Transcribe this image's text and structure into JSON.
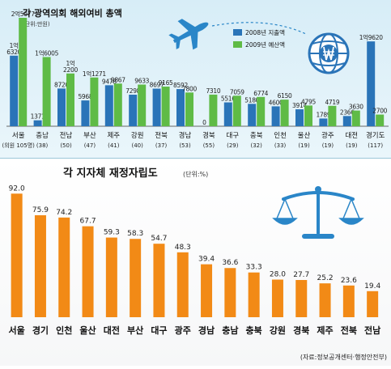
{
  "colors": {
    "series_2008": "#2a74b8",
    "series_2009": "#5fbb46",
    "independence_bar": "#f28a16",
    "top_background": "#dff1f8"
  },
  "chart_data": [
    {
      "type": "bar",
      "title": "각 광역의회 해외여비 총액",
      "unit": "(단위:만원)",
      "legend_position": "top-right",
      "categories": [
        "서울",
        "충남",
        "전남",
        "부산",
        "제주",
        "강원",
        "전북",
        "경남",
        "경북",
        "대구",
        "충북",
        "인천",
        "울산",
        "광주",
        "대전",
        "경기도"
      ],
      "category_sublabels": [
        "(의원 105명)",
        "(38)",
        "(50)",
        "(47)",
        "(41)",
        "(40)",
        "(37)",
        "(53)",
        "(55)",
        "(29)",
        "(32)",
        "(33)",
        "(19)",
        "(19)",
        "(19)",
        "(117)"
      ],
      "series": [
        {
          "name": "2008년 지출액",
          "values": [
            16320,
            1371,
            8720,
            5968,
            9478,
            7298,
            8697,
            8592,
            0,
            5516,
            5180,
            4600,
            3914,
            1789,
            2366,
            19620
          ],
          "value_labels": [
            "1억\n6320",
            "1371",
            "8720",
            "5968",
            "9478",
            "7298",
            "8697",
            "8592",
            "0",
            "5516",
            "5180",
            "4600",
            "3914",
            "1789",
            "2366",
            "1억9620"
          ]
        },
        {
          "name": "2009년 예산액",
          "values": [
            25077,
            16005,
            12200,
            11271,
            9867,
            9633,
            9165,
            7800,
            7310,
            7059,
            6774,
            6150,
            4795,
            4719,
            3630,
            2700
          ],
          "value_labels": [
            "2억5077",
            "1억6005",
            "1억\n2200",
            "1억1271",
            "9867",
            "9633",
            "9165",
            "7800",
            "7310",
            "7059",
            "6774",
            "6150",
            "4795",
            "4719",
            "3630",
            "2700"
          ]
        }
      ]
    },
    {
      "type": "bar",
      "title": "각 지자체 재정자립도",
      "unit": "(단위:%)",
      "source": "(자료:정보공개센터·행정안전부)",
      "categories": [
        "서울",
        "경기",
        "인천",
        "울산",
        "대전",
        "부산",
        "대구",
        "광주",
        "경남",
        "충남",
        "충북",
        "강원",
        "경북",
        "제주",
        "전북",
        "전남"
      ],
      "values": [
        92.0,
        75.9,
        74.2,
        67.7,
        59.3,
        58.3,
        54.7,
        48.3,
        39.4,
        36.6,
        33.3,
        28.0,
        27.7,
        25.2,
        23.6,
        19.4
      ],
      "value_labels": [
        "92.0",
        "75.9",
        "74.2",
        "67.7",
        "59.3",
        "58.3",
        "54.7",
        "48.3",
        "39.4",
        "36.6",
        "33.3",
        "28.0",
        "27.7",
        "25.2",
        "23.6",
        "19.4"
      ]
    }
  ]
}
